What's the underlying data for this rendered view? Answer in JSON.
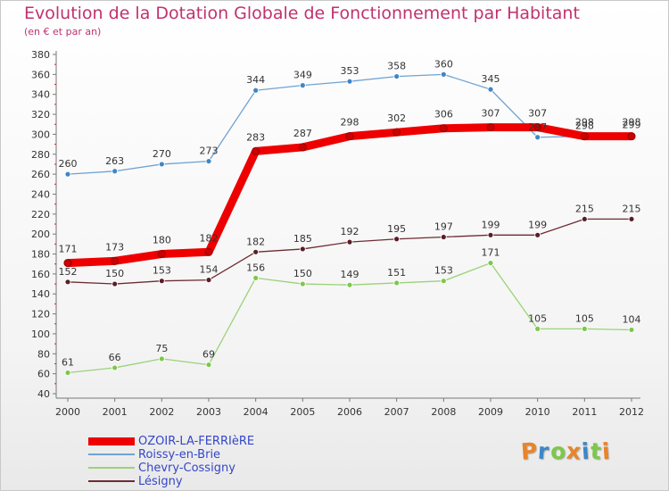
{
  "chart_data": {
    "type": "line",
    "title": "Evolution de la Dotation Globale de Fonctionnement par Habitant",
    "subtitle": "(en € et par an)",
    "xlabel": "",
    "ylabel": "",
    "categories": [
      "2000",
      "2001",
      "2002",
      "2003",
      "2004",
      "2005",
      "2006",
      "2007",
      "2008",
      "2009",
      "2010",
      "2011",
      "2012"
    ],
    "ylim": [
      40,
      380
    ],
    "yticks": [
      40,
      60,
      80,
      100,
      120,
      140,
      160,
      180,
      200,
      220,
      240,
      260,
      280,
      300,
      320,
      340,
      360,
      380
    ],
    "grid": false,
    "legend_position": "bottom-left",
    "series": [
      {
        "name": "OZOIR-LA-FERRIèRE",
        "color": "#ee0000",
        "marker": "#cc0000",
        "values": [
          171,
          173,
          180,
          182,
          283,
          287,
          298,
          302,
          306,
          307,
          307,
          298,
          298
        ]
      },
      {
        "name": "Roissy-en-Brie",
        "color": "#6fa3d2",
        "marker": "#3f86c5",
        "values": [
          260,
          263,
          270,
          273,
          344,
          349,
          353,
          358,
          360,
          345,
          297,
          298,
          299
        ]
      },
      {
        "name": "Chevry-Cossigny",
        "color": "#9bd27a",
        "marker": "#7cc84a",
        "values": [
          61,
          66,
          75,
          69,
          156,
          150,
          149,
          151,
          153,
          171,
          105,
          105,
          104
        ]
      },
      {
        "name": "Lésigny",
        "color": "#6e2c34",
        "marker": "#5a1e26",
        "values": [
          152,
          150,
          153,
          154,
          182,
          185,
          192,
          195,
          197,
          199,
          199,
          215,
          215
        ]
      }
    ]
  },
  "logo": {
    "letters": [
      "P",
      "r",
      "o",
      "x",
      "i",
      "t",
      "i"
    ],
    "colors": [
      "#e8842a",
      "#3f86c5",
      "#7cc84a",
      "#e8842a",
      "#3f86c5",
      "#7cc84a",
      "#e8842a"
    ]
  }
}
